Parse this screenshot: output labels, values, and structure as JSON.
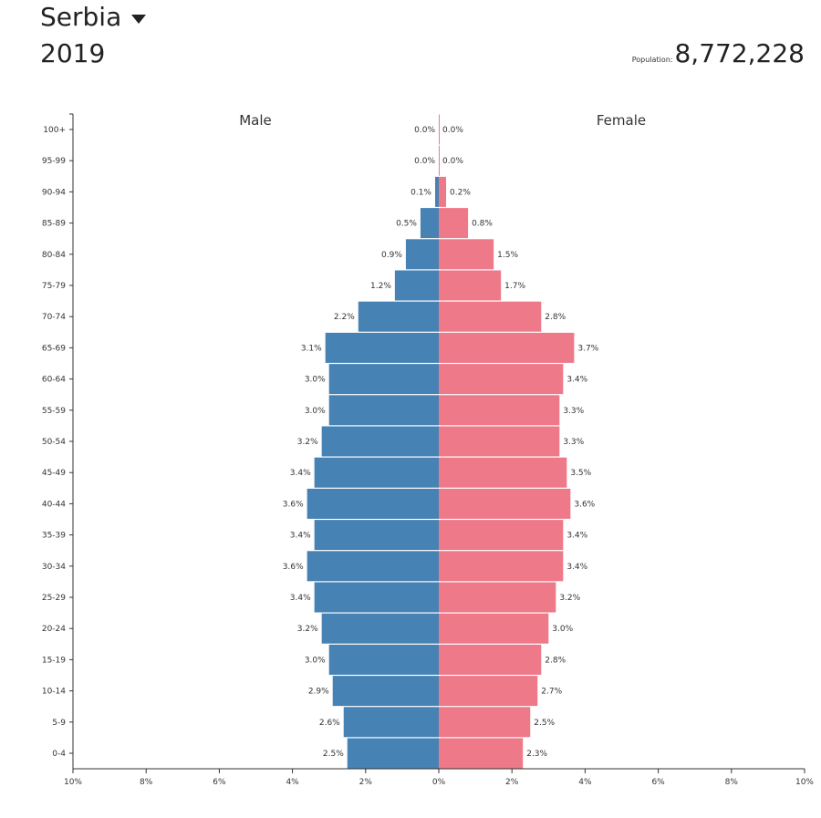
{
  "header": {
    "country": "Serbia",
    "year": "2019",
    "population_label": "Population:",
    "population_value": "8,772,228"
  },
  "chart_data": {
    "type": "population-pyramid",
    "x_unit": "%",
    "xlim": [
      -10,
      10
    ],
    "x_ticks": [
      "10%",
      "8%",
      "6%",
      "4%",
      "2%",
      "0%",
      "2%",
      "4%",
      "6%",
      "8%",
      "10%"
    ],
    "left_title": "Male",
    "right_title": "Female",
    "colors": {
      "male": "#4682b4",
      "female": "#ee7989"
    },
    "age_groups": [
      "100+",
      "95-99",
      "90-94",
      "85-89",
      "80-84",
      "75-79",
      "70-74",
      "65-69",
      "60-64",
      "55-59",
      "50-54",
      "45-49",
      "40-44",
      "35-39",
      "30-34",
      "25-29",
      "20-24",
      "15-19",
      "10-14",
      "5-9",
      "0-4"
    ],
    "series": [
      {
        "name": "Male",
        "values": [
          0.0,
          0.0,
          0.1,
          0.5,
          0.9,
          1.2,
          2.2,
          3.1,
          3.0,
          3.0,
          3.2,
          3.4,
          3.6,
          3.4,
          3.6,
          3.4,
          3.2,
          3.0,
          2.9,
          2.6,
          2.5
        ],
        "labels": [
          "0.0%",
          "0.0%",
          "0.1%",
          "0.5%",
          "0.9%",
          "1.2%",
          "2.2%",
          "3.1%",
          "3.0%",
          "3.0%",
          "3.2%",
          "3.4%",
          "3.6%",
          "3.4%",
          "3.6%",
          "3.4%",
          "3.2%",
          "3.0%",
          "2.9%",
          "2.6%",
          "2.5%"
        ]
      },
      {
        "name": "Female",
        "values": [
          0.0,
          0.0,
          0.2,
          0.8,
          1.5,
          1.7,
          2.8,
          3.7,
          3.4,
          3.3,
          3.3,
          3.5,
          3.6,
          3.4,
          3.4,
          3.2,
          3.0,
          2.8,
          2.7,
          2.5,
          2.3
        ],
        "labels": [
          "0.0%",
          "0.0%",
          "0.2%",
          "0.8%",
          "1.5%",
          "1.7%",
          "2.8%",
          "3.7%",
          "3.4%",
          "3.3%",
          "3.3%",
          "3.5%",
          "3.6%",
          "3.4%",
          "3.4%",
          "3.2%",
          "3.0%",
          "2.8%",
          "2.7%",
          "2.5%",
          "2.3%"
        ]
      }
    ]
  }
}
